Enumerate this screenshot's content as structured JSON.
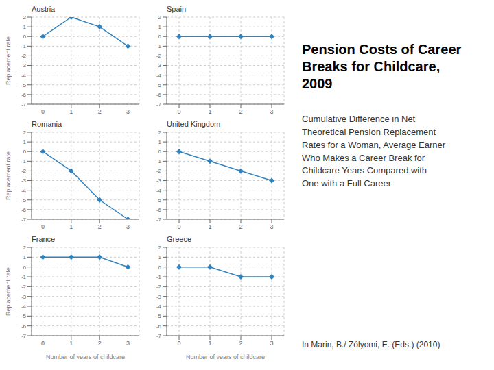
{
  "title": "Pension Costs of Career\nBreaks for Childcare,\n2009",
  "subtitle": "Cumulative Difference in Net\nTheoretical Pension Replacement\nRates for a Woman, Average Earner\nWho Makes a Career Break for\nChildcare Years Compared with\nOne with a Full Career",
  "annotations": [
    "In Marin, B./ Zólyomi, E. (Eds.) (2010)"
  ],
  "chart_data": [
    {
      "type": "line",
      "title": "Austria",
      "x": [
        0,
        1,
        2,
        3
      ],
      "values": [
        0,
        2,
        1,
        -1
      ],
      "xlim": [
        -0.4,
        3.4
      ],
      "xticks": [
        0,
        1,
        2,
        3
      ],
      "ylim": [
        -7,
        2
      ],
      "yticks": [
        -7,
        -6,
        -5,
        -4,
        -3,
        -2,
        -1,
        0,
        1,
        2
      ],
      "y_label": "Replacement rate",
      "grid": true,
      "marker": "diamond"
    },
    {
      "type": "line",
      "title": "Spain",
      "x": [
        0,
        1,
        2,
        3
      ],
      "values": [
        0,
        0,
        0,
        0
      ],
      "xlim": [
        -0.4,
        3.4
      ],
      "xticks": [
        0,
        1,
        2,
        3
      ],
      "ylim": [
        -7,
        2
      ],
      "yticks": [
        -7,
        -6,
        -5,
        -4,
        -3,
        -2,
        -1,
        0,
        1,
        2
      ],
      "grid": true,
      "marker": "diamond"
    },
    {
      "type": "line",
      "title": "Romania",
      "x": [
        0,
        1,
        2,
        3
      ],
      "values": [
        0,
        -2,
        -5,
        -7
      ],
      "xlim": [
        -0.4,
        3.4
      ],
      "xticks": [
        0,
        1,
        2,
        3
      ],
      "ylim": [
        -7,
        2
      ],
      "yticks": [
        -7,
        -6,
        -5,
        -4,
        -3,
        -2,
        -1,
        0,
        1,
        2
      ],
      "y_label": "Replacement rate",
      "grid": true,
      "marker": "diamond"
    },
    {
      "type": "line",
      "title": "United Kingdom",
      "x": [
        0,
        1,
        2,
        3
      ],
      "values": [
        0,
        -1,
        -2,
        -3
      ],
      "xlim": [
        -0.4,
        3.4
      ],
      "xticks": [
        0,
        1,
        2,
        3
      ],
      "ylim": [
        -7,
        2
      ],
      "yticks": [
        -7,
        -6,
        -5,
        -4,
        -3,
        -2,
        -1,
        0,
        1,
        2
      ],
      "grid": true,
      "marker": "diamond"
    },
    {
      "type": "line",
      "title": "France",
      "x": [
        0,
        1,
        2,
        3
      ],
      "values": [
        1,
        1,
        1,
        0
      ],
      "xlim": [
        -0.4,
        3.4
      ],
      "xticks": [
        0,
        1,
        2,
        3
      ],
      "ylim": [
        -7,
        2
      ],
      "yticks": [
        -7,
        -6,
        -5,
        -4,
        -3,
        -2,
        -1,
        0,
        1,
        2
      ],
      "y_label": "Replacement rate",
      "x_label": "Number of years of childcare",
      "grid": true,
      "marker": "diamond"
    },
    {
      "type": "line",
      "title": "Greece",
      "x": [
        0,
        1,
        2,
        3
      ],
      "values": [
        0,
        0,
        -1,
        -1
      ],
      "xlim": [
        -0.4,
        3.4
      ],
      "xticks": [
        0,
        1,
        2,
        3
      ],
      "ylim": [
        -7,
        2
      ],
      "yticks": [
        -7,
        -6,
        -5,
        -4,
        -3,
        -2,
        -1,
        0,
        1,
        2
      ],
      "x_label": "Number of years of childcare",
      "grid": true,
      "marker": "diamond"
    }
  ]
}
